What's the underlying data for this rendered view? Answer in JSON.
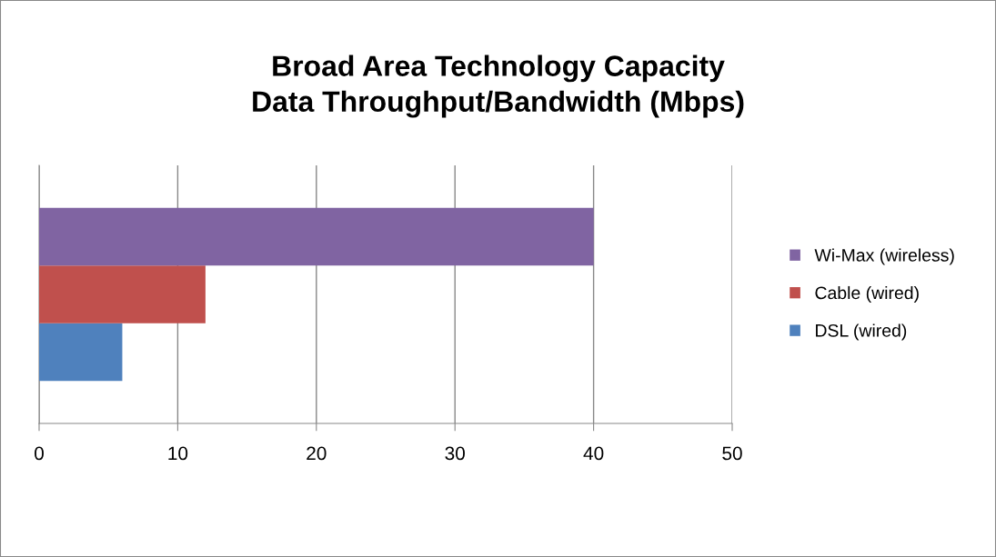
{
  "chart_data": {
    "type": "bar",
    "orientation": "horizontal",
    "title": "Broad Area Technology Capacity\nData Throughput/Bandwidth (Mbps)",
    "categories": [
      null
    ],
    "series": [
      {
        "name": "DSL (wired)",
        "color": "#4f81bd",
        "values": [
          6
        ]
      },
      {
        "name": "Cable (wired)",
        "color": "#c0504d",
        "values": [
          12
        ]
      },
      {
        "name": "Wi-Max (wireless)",
        "color": "#8064a2",
        "values": [
          40
        ]
      }
    ],
    "xlim": [
      0,
      50
    ],
    "xticks": [
      0,
      10,
      20,
      30,
      40,
      50
    ],
    "grid": "x",
    "legend": "right",
    "tick_labels": "x"
  }
}
